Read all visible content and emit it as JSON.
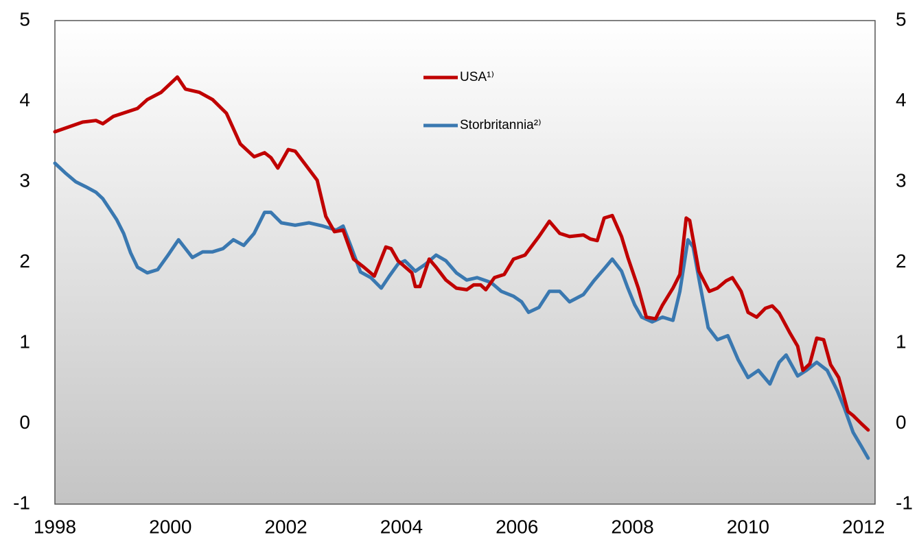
{
  "chart_data": {
    "type": "line",
    "xlim": [
      1998,
      2012.2
    ],
    "xticks": [
      1998,
      2000,
      2002,
      2004,
      2006,
      2008,
      2010,
      2012
    ],
    "ylim": [
      -1,
      5
    ],
    "yticks": [
      -1,
      0,
      1,
      2,
      3,
      4,
      5
    ],
    "legend": "top-center",
    "grid": false,
    "series": [
      {
        "name": "USA¹⁾",
        "color": "#c00000",
        "x": [
          1998.0,
          1998.48,
          1998.71,
          1998.83,
          1999.01,
          1999.43,
          1999.6,
          1999.84,
          2000.12,
          2000.26,
          2000.5,
          2000.73,
          2000.97,
          2001.21,
          2001.45,
          2001.63,
          2001.74,
          2001.86,
          2002.04,
          2002.16,
          2002.34,
          2002.54,
          2002.69,
          2002.84,
          2002.99,
          2003.17,
          2003.35,
          2003.53,
          2003.73,
          2003.82,
          2003.94,
          2004.18,
          2004.24,
          2004.32,
          2004.48,
          2004.6,
          2004.77,
          2004.95,
          2005.13,
          2005.25,
          2005.37,
          2005.46,
          2005.61,
          2005.78,
          2005.94,
          2006.14,
          2006.38,
          2006.56,
          2006.74,
          2006.91,
          2007.15,
          2007.27,
          2007.39,
          2007.51,
          2007.65,
          2007.81,
          2007.92,
          2008.1,
          2008.24,
          2008.4,
          2008.52,
          2008.7,
          2008.82,
          2008.93,
          2008.99,
          2009.15,
          2009.33,
          2009.47,
          2009.62,
          2009.73,
          2009.88,
          2010.0,
          2010.15,
          2010.3,
          2010.42,
          2010.54,
          2010.72,
          2010.86,
          2010.95,
          2011.07,
          2011.19,
          2011.31,
          2011.43,
          2011.57,
          2011.73,
          2011.82,
          2011.96,
          2012.08
        ],
        "values": [
          3.62,
          3.74,
          3.76,
          3.72,
          3.81,
          3.91,
          4.02,
          4.11,
          4.3,
          4.15,
          4.11,
          4.02,
          3.85,
          3.47,
          3.31,
          3.36,
          3.3,
          3.17,
          3.4,
          3.38,
          3.21,
          3.02,
          2.57,
          2.38,
          2.4,
          2.04,
          1.94,
          1.83,
          2.19,
          2.17,
          2.02,
          1.87,
          1.7,
          1.7,
          2.04,
          1.94,
          1.78,
          1.68,
          1.66,
          1.72,
          1.72,
          1.66,
          1.81,
          1.85,
          2.04,
          2.09,
          2.32,
          2.51,
          2.36,
          2.32,
          2.34,
          2.29,
          2.27,
          2.55,
          2.58,
          2.32,
          2.06,
          1.68,
          1.32,
          1.3,
          1.47,
          1.68,
          1.85,
          2.55,
          2.52,
          1.89,
          1.64,
          1.68,
          1.77,
          1.81,
          1.64,
          1.38,
          1.32,
          1.43,
          1.46,
          1.37,
          1.13,
          0.96,
          0.66,
          0.74,
          1.06,
          1.04,
          0.73,
          0.57,
          0.15,
          0.1,
          0.0,
          -0.08
        ]
      },
      {
        "name": "Storbritannia²⁾",
        "color": "#3a78b0",
        "x": [
          1998.0,
          1998.18,
          1998.36,
          1998.53,
          1998.71,
          1998.83,
          1998.95,
          1999.07,
          1999.19,
          1999.31,
          1999.43,
          1999.6,
          1999.78,
          1999.96,
          2000.14,
          2000.26,
          2000.38,
          2000.56,
          2000.73,
          2000.91,
          2001.09,
          2001.27,
          2001.45,
          2001.63,
          2001.74,
          2001.92,
          2002.16,
          2002.4,
          2002.64,
          2002.87,
          2002.99,
          2003.13,
          2003.29,
          2003.47,
          2003.65,
          2003.79,
          2003.94,
          2004.06,
          2004.24,
          2004.42,
          2004.6,
          2004.77,
          2004.95,
          2005.13,
          2005.31,
          2005.55,
          2005.73,
          2005.94,
          2006.08,
          2006.2,
          2006.38,
          2006.56,
          2006.74,
          2006.91,
          2007.15,
          2007.33,
          2007.51,
          2007.65,
          2007.81,
          2007.92,
          2008.04,
          2008.16,
          2008.34,
          2008.52,
          2008.7,
          2008.82,
          2008.96,
          2009.05,
          2009.17,
          2009.31,
          2009.47,
          2009.65,
          2009.83,
          2010.0,
          2010.18,
          2010.38,
          2010.54,
          2010.66,
          2010.86,
          2011.01,
          2011.19,
          2011.37,
          2011.55,
          2011.67,
          2011.82,
          2011.96,
          2012.08
        ],
        "values": [
          3.23,
          3.11,
          3.0,
          2.94,
          2.87,
          2.79,
          2.66,
          2.53,
          2.36,
          2.12,
          1.94,
          1.87,
          1.91,
          2.09,
          2.28,
          2.17,
          2.06,
          2.13,
          2.13,
          2.17,
          2.28,
          2.21,
          2.36,
          2.62,
          2.62,
          2.49,
          2.46,
          2.49,
          2.45,
          2.4,
          2.45,
          2.19,
          1.88,
          1.81,
          1.68,
          1.83,
          1.98,
          2.02,
          1.89,
          1.98,
          2.09,
          2.02,
          1.87,
          1.78,
          1.81,
          1.75,
          1.64,
          1.58,
          1.51,
          1.38,
          1.44,
          1.64,
          1.64,
          1.51,
          1.6,
          1.77,
          1.92,
          2.04,
          1.89,
          1.68,
          1.47,
          1.32,
          1.26,
          1.32,
          1.28,
          1.64,
          2.28,
          2.19,
          1.72,
          1.19,
          1.04,
          1.09,
          0.79,
          0.57,
          0.66,
          0.49,
          0.76,
          0.85,
          0.59,
          0.66,
          0.76,
          0.66,
          0.4,
          0.19,
          -0.11,
          -0.28,
          -0.43
        ]
      }
    ]
  }
}
